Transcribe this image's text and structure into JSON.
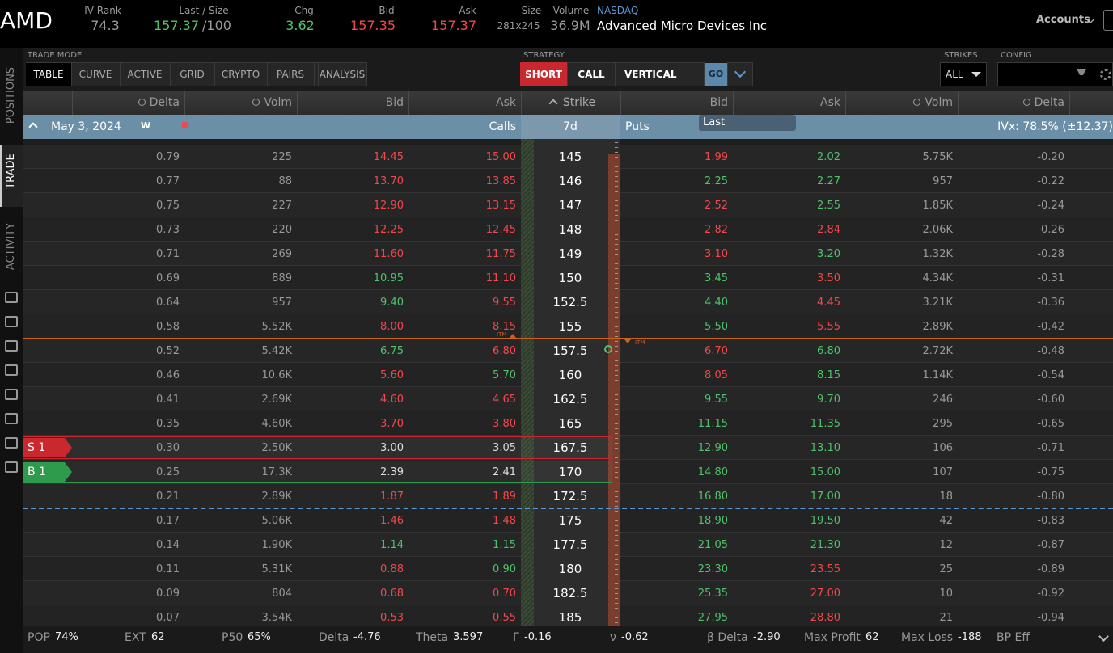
{
  "header": {
    "symbol": "AMD",
    "iv_rank_label": "IV Rank",
    "iv_rank": "74.3",
    "last_size_label": "Last / Size",
    "last": "157.37",
    "size": "/100",
    "chg_label": "Chg",
    "chg": "3.62",
    "bid_label": "Bid",
    "bid": "157.35",
    "ask_label": "Ask",
    "ask": "157.37",
    "size_label": "Size",
    "bid_ask_size": "281x245",
    "volume_label": "Volume",
    "volume": "36.9M",
    "exchange": "NASDAQ",
    "company": "Advanced Micro Devices Inc",
    "accounts": "Accounts"
  },
  "side_tabs": [
    "POSITIONS",
    "TRADE",
    "ACTIVITY"
  ],
  "toolbar": {
    "trade_mode_label": "TRADE MODE",
    "trade_modes": [
      "TABLE",
      "CURVE",
      "ACTIVE",
      "GRID",
      "CRYPTO",
      "PAIRS"
    ],
    "analysis": "ANALYSIS",
    "strategy_label": "STRATEGY",
    "side": "SHORT",
    "option_type": "CALL",
    "strategy": "VERTICAL",
    "go": "GO",
    "strikes_label": "STRIKES",
    "strikes": "ALL",
    "config_label": "CONFIG"
  },
  "table": {
    "columns": [
      "Delta",
      "Volm",
      "Bid",
      "Ask",
      "Strike",
      "Bid",
      "Ask",
      "Volm",
      "Delta"
    ],
    "expiry": {
      "date": "May 3, 2024",
      "weekly": "W",
      "calls": "Calls",
      "days": "7d",
      "puts": "Puts",
      "last": "Last",
      "ivx": "IVx: 78.5% (±12.37)"
    },
    "itm_label": "ITM",
    "rows": [
      {
        "cells": [
          "0.79",
          "225",
          "14.45",
          "15.00",
          "145",
          "1.99",
          "2.02",
          "5.75K",
          "-0.20"
        ],
        "colors": "rrrg"
      },
      {
        "cells": [
          "0.77",
          "88",
          "13.70",
          "13.85",
          "146",
          "2.25",
          "2.27",
          "957",
          "-0.22"
        ],
        "colors": "rrgg"
      },
      {
        "cells": [
          "0.75",
          "227",
          "12.90",
          "13.15",
          "147",
          "2.52",
          "2.55",
          "1.85K",
          "-0.24"
        ],
        "colors": "rrrg"
      },
      {
        "cells": [
          "0.73",
          "220",
          "12.25",
          "12.45",
          "148",
          "2.82",
          "2.84",
          "2.06K",
          "-0.26"
        ],
        "colors": "rrrr"
      },
      {
        "cells": [
          "0.71",
          "269",
          "11.60",
          "11.75",
          "149",
          "3.10",
          "3.20",
          "1.32K",
          "-0.28"
        ],
        "colors": "rrrg"
      },
      {
        "cells": [
          "0.69",
          "889",
          "10.95",
          "11.10",
          "150",
          "3.45",
          "3.50",
          "4.34K",
          "-0.31"
        ],
        "colors": "grgr"
      },
      {
        "cells": [
          "0.64",
          "957",
          "9.40",
          "9.55",
          "152.5",
          "4.40",
          "4.45",
          "3.21K",
          "-0.36"
        ],
        "colors": "grgr"
      },
      {
        "cells": [
          "0.58",
          "5.52K",
          "8.00",
          "8.15",
          "155",
          "5.50",
          "5.55",
          "2.89K",
          "-0.42"
        ],
        "colors": "rrgr"
      },
      {
        "cells": [
          "0.52",
          "5.42K",
          "6.75",
          "6.80",
          "157.5",
          "6.70",
          "6.80",
          "2.72K",
          "-0.48"
        ],
        "colors": "grrg"
      },
      {
        "cells": [
          "0.46",
          "10.6K",
          "5.60",
          "5.70",
          "160",
          "8.05",
          "8.15",
          "1.14K",
          "-0.54"
        ],
        "colors": "rgrg"
      },
      {
        "cells": [
          "0.41",
          "2.69K",
          "4.60",
          "4.65",
          "162.5",
          "9.55",
          "9.70",
          "246",
          "-0.60"
        ],
        "colors": "rrgg"
      },
      {
        "cells": [
          "0.35",
          "4.60K",
          "3.70",
          "3.80",
          "165",
          "11.15",
          "11.35",
          "295",
          "-0.65"
        ],
        "colors": "rrgg"
      },
      {
        "cells": [
          "0.30",
          "2.50K",
          "3.00",
          "3.05",
          "167.5",
          "12.90",
          "13.10",
          "106",
          "-0.71"
        ],
        "colors": "wwgg",
        "order": "S 1"
      },
      {
        "cells": [
          "0.25",
          "17.3K",
          "2.39",
          "2.41",
          "170",
          "14.80",
          "15.00",
          "107",
          "-0.75"
        ],
        "colors": "wwgg",
        "order": "B 1"
      },
      {
        "cells": [
          "0.21",
          "2.89K",
          "1.87",
          "1.89",
          "172.5",
          "16.80",
          "17.00",
          "18",
          "-0.80"
        ],
        "colors": "rrgg"
      },
      {
        "cells": [
          "0.17",
          "5.06K",
          "1.46",
          "1.48",
          "175",
          "18.90",
          "19.50",
          "42",
          "-0.83"
        ],
        "colors": "rrgg"
      },
      {
        "cells": [
          "0.14",
          "1.90K",
          "1.14",
          "1.15",
          "177.5",
          "21.05",
          "21.30",
          "12",
          "-0.87"
        ],
        "colors": "gggg"
      },
      {
        "cells": [
          "0.11",
          "5.31K",
          "0.88",
          "0.90",
          "180",
          "23.30",
          "23.55",
          "25",
          "-0.89"
        ],
        "colors": "rggr"
      },
      {
        "cells": [
          "0.09",
          "804",
          "0.68",
          "0.70",
          "182.5",
          "25.35",
          "27.00",
          "10",
          "-0.92"
        ],
        "colors": "rrgr"
      },
      {
        "cells": [
          "0.07",
          "3.54K",
          "0.53",
          "0.55",
          "185",
          "27.95",
          "28.80",
          "21",
          "-0.94"
        ],
        "colors": "rrgr"
      }
    ]
  },
  "footer": {
    "items": [
      {
        "label": "POP",
        "value": "74%"
      },
      {
        "label": "EXT",
        "value": "62"
      },
      {
        "label": "P50",
        "value": "65%"
      },
      {
        "label": "Delta",
        "value": "-4.76"
      },
      {
        "label": "Theta",
        "value": "3.597"
      },
      {
        "label": "Γ",
        "value": "-0.16"
      },
      {
        "label": "ν",
        "value": "-0.62"
      },
      {
        "label": "β Delta",
        "value": "-2.90"
      },
      {
        "label": "Max Profit",
        "value": "62"
      },
      {
        "label": "Max Loss",
        "value": "-188"
      }
    ],
    "last": "BP Eff"
  }
}
